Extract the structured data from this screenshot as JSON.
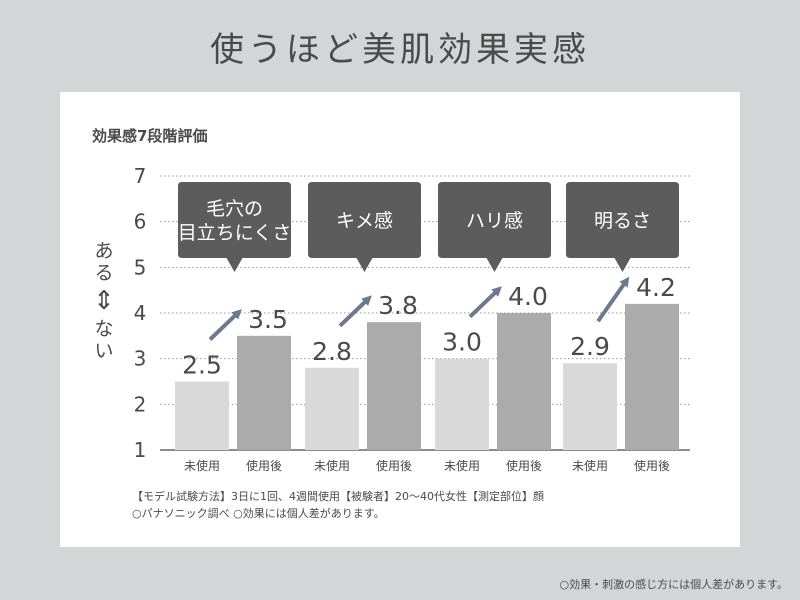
{
  "header": {
    "title": "使うほど美肌効果実感"
  },
  "panel": {
    "subtitle": "効果感7段階評価",
    "notes": [
      "【モデル試験方法】3日に1回、4週間使用【被験者】20～40代女性【測定部位】顔",
      "○パナソニック調べ ○効果には個人差があります。"
    ]
  },
  "footer": {
    "note": "○効果・刺激の感じ方には個人差があります。"
  },
  "yaxis": {
    "top": "ある",
    "arrow": "⇕",
    "bottom": "ない"
  },
  "colors": {
    "before_bar": "#d9d9d9",
    "after_bar": "#ababab",
    "callout": "#5c5c5c",
    "arrow": "#6b7a8c",
    "grid": "#999999"
  },
  "chart_data": {
    "type": "bar",
    "title": "効果感7段階評価",
    "ylim": [
      1,
      7
    ],
    "yticks": [
      "1",
      "2",
      "3",
      "4",
      "5",
      "6",
      "7"
    ],
    "grid": "dashed-horizontal",
    "categories": [
      "毛穴の目立ちにくさ",
      "キメ感",
      "ハリ感",
      "明るさ"
    ],
    "category_callouts": [
      [
        "毛穴の",
        "目立ちにくさ"
      ],
      [
        "キメ感"
      ],
      [
        "ハリ感"
      ],
      [
        "明るさ"
      ]
    ],
    "series": [
      {
        "name": "未使用",
        "values": [
          2.5,
          2.8,
          3.0,
          2.9
        ],
        "labels": [
          "2.5",
          "2.8",
          "3.0",
          "2.9"
        ]
      },
      {
        "name": "使用後",
        "values": [
          3.5,
          3.8,
          4.0,
          4.2
        ],
        "labels": [
          "3.5",
          "3.8",
          "4.0",
          "4.2"
        ]
      }
    ]
  }
}
